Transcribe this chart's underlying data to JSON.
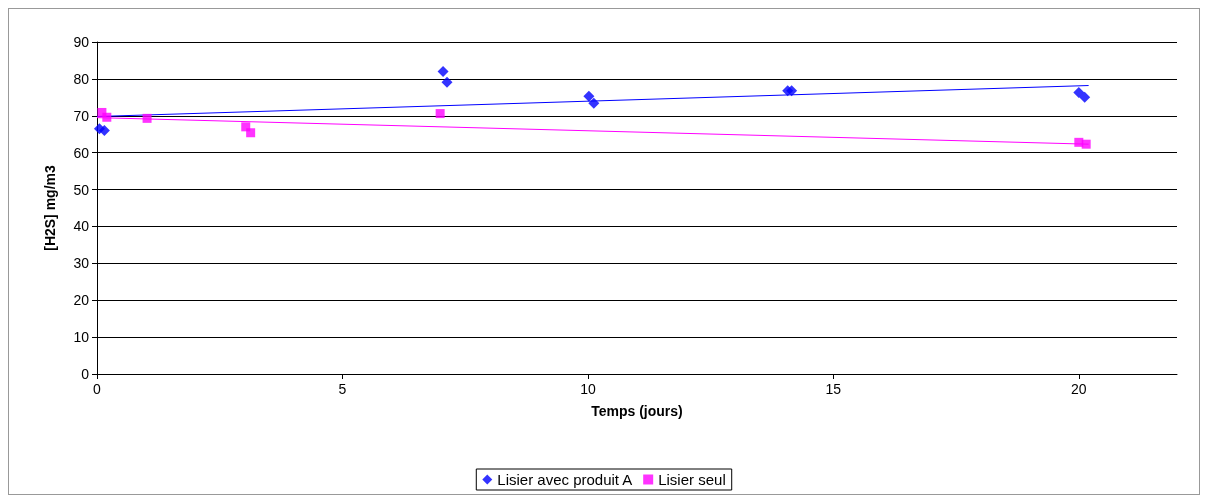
{
  "chart_data": {
    "type": "scatter",
    "xlabel": "Temps (jours)",
    "ylabel": "[H2S] mg/m3",
    "xlim": [
      0,
      22
    ],
    "xticks": [
      0,
      5,
      10,
      15,
      20
    ],
    "ylim": [
      0,
      90
    ],
    "yticks": [
      0,
      10,
      20,
      30,
      40,
      50,
      60,
      70,
      80,
      90
    ],
    "grid": "y",
    "legend": "bottom",
    "series": [
      {
        "name": "Lisier avec produit A",
        "color": "#0000ff",
        "marker": "diamond",
        "x": [
          0.05,
          0.15,
          7.05,
          7.13,
          10.02,
          10.12,
          14.07,
          14.15,
          20,
          20.12
        ],
        "values": [
          66.5,
          66,
          82,
          79.1,
          75.3,
          73.4,
          76.8,
          76.8,
          76.3,
          75
        ]
      },
      {
        "name": "Lisier seul",
        "color": "#ff00ff",
        "marker": "square",
        "x": [
          0.1,
          0.2,
          1.02,
          3.03,
          3.13,
          6.99,
          20,
          20.15
        ],
        "values": [
          70.9,
          69.6,
          69.3,
          67,
          65.4,
          70.6,
          62.8,
          62.3
        ]
      },
      {
        "type": "line",
        "color": "#0000ff",
        "marker": "none",
        "x": [
          0,
          20.2
        ],
        "values": [
          69.8,
          78.2
        ]
      },
      {
        "type": "line",
        "color": "#ff00ff",
        "marker": "none",
        "x": [
          0,
          20.2
        ],
        "values": [
          69.5,
          62.3
        ]
      }
    ]
  }
}
